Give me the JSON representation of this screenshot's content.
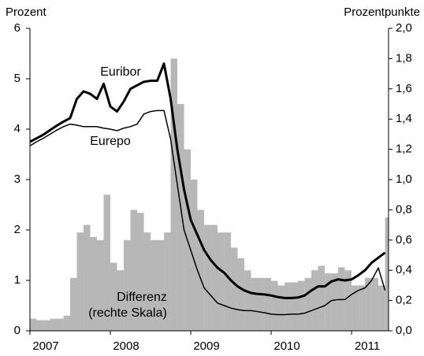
{
  "chart_data": {
    "type": "combo",
    "y_label": "Prozent",
    "y2_label": "Prozentpunkte",
    "x": [
      2007.0,
      2007.083,
      2007.167,
      2007.25,
      2007.333,
      2007.417,
      2007.5,
      2007.583,
      2007.667,
      2007.75,
      2007.833,
      2007.917,
      2008.0,
      2008.083,
      2008.167,
      2008.25,
      2008.333,
      2008.417,
      2008.5,
      2008.583,
      2008.667,
      2008.75,
      2008.833,
      2008.917,
      2009.0,
      2009.083,
      2009.167,
      2009.25,
      2009.333,
      2009.417,
      2009.5,
      2009.583,
      2009.667,
      2009.75,
      2009.833,
      2009.917,
      2010.0,
      2010.083,
      2010.167,
      2010.25,
      2010.333,
      2010.417,
      2010.5,
      2010.583,
      2010.667,
      2010.75,
      2010.833,
      2010.917,
      2011.0,
      2011.083,
      2011.167,
      2011.25,
      2011.333,
      2011.417
    ],
    "series": [
      {
        "name": "Differenz",
        "type": "bar",
        "axis": "y2",
        "color": "#b7b7b7",
        "values": [
          0.08,
          0.07,
          0.07,
          0.08,
          0.08,
          0.1,
          0.35,
          0.65,
          0.7,
          0.62,
          0.6,
          0.9,
          0.45,
          0.4,
          0.6,
          0.8,
          0.78,
          0.65,
          0.6,
          0.6,
          0.65,
          1.8,
          1.5,
          1.2,
          1.0,
          0.8,
          0.7,
          0.7,
          0.65,
          0.65,
          0.55,
          0.48,
          0.4,
          0.35,
          0.35,
          0.35,
          0.33,
          0.3,
          0.32,
          0.32,
          0.33,
          0.35,
          0.4,
          0.43,
          0.38,
          0.38,
          0.42,
          0.4,
          0.3,
          0.3,
          0.35,
          0.35,
          0.3,
          0.75
        ]
      },
      {
        "name": "Euribor",
        "type": "line",
        "color": "#000000",
        "width": 3,
        "values": [
          3.75,
          3.82,
          3.89,
          3.98,
          4.07,
          4.15,
          4.22,
          4.6,
          4.75,
          4.7,
          4.6,
          4.9,
          4.45,
          4.35,
          4.55,
          4.8,
          4.87,
          4.94,
          4.96,
          4.96,
          5.3,
          4.6,
          3.6,
          2.8,
          2.2,
          1.9,
          1.6,
          1.4,
          1.25,
          1.15,
          1.0,
          0.88,
          0.8,
          0.75,
          0.73,
          0.72,
          0.7,
          0.67,
          0.65,
          0.65,
          0.66,
          0.7,
          0.8,
          0.88,
          0.88,
          0.98,
          1.02,
          1.0,
          1.02,
          1.1,
          1.2,
          1.35,
          1.45,
          1.55
        ]
      },
      {
        "name": "Eurepo",
        "type": "line",
        "color": "#000000",
        "width": 1.5,
        "values": [
          3.67,
          3.75,
          3.82,
          3.9,
          3.98,
          4.05,
          4.1,
          4.08,
          4.05,
          4.05,
          4.05,
          4.02,
          4.0,
          3.97,
          4.02,
          4.05,
          4.1,
          4.3,
          4.35,
          4.37,
          4.37,
          3.8,
          2.9,
          2.0,
          1.6,
          1.2,
          0.85,
          0.7,
          0.55,
          0.5,
          0.45,
          0.42,
          0.4,
          0.4,
          0.38,
          0.36,
          0.33,
          0.32,
          0.32,
          0.33,
          0.33,
          0.35,
          0.4,
          0.45,
          0.5,
          0.6,
          0.62,
          0.62,
          0.72,
          0.8,
          0.85,
          1.0,
          1.25,
          0.8
        ]
      }
    ],
    "annotations": [
      "Euribor",
      "Eurepo",
      "Differenz",
      "(rechte Skala)"
    ],
    "xlim": [
      2007,
      2011.46
    ],
    "xticks": [
      2007,
      2008,
      2009,
      2010,
      2011
    ],
    "ylim": [
      0,
      6
    ],
    "yticks": [
      0,
      1,
      2,
      3,
      4,
      5,
      6
    ],
    "y2lim": [
      0,
      2
    ],
    "y2ticks": [
      {
        "value": 0,
        "label": "0,0"
      },
      {
        "value": 0.2,
        "label": "0,2"
      },
      {
        "value": 0.4,
        "label": "0,4"
      },
      {
        "value": 0.6,
        "label": "0,6"
      },
      {
        "value": 0.8,
        "label": "0,8"
      },
      {
        "value": 1.0,
        "label": "1,0"
      },
      {
        "value": 1.2,
        "label": "1,2"
      },
      {
        "value": 1.4,
        "label": "1,4"
      },
      {
        "value": 1.6,
        "label": "1,6"
      },
      {
        "value": 1.8,
        "label": "1,8"
      },
      {
        "value": 2.0,
        "label": "2,0"
      }
    ]
  }
}
